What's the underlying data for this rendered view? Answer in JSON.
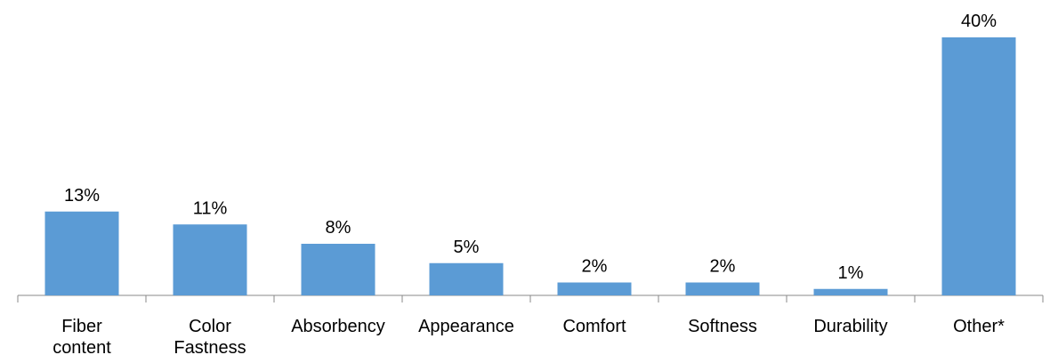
{
  "chart_data": {
    "type": "bar",
    "categories": [
      "Fiber content",
      "Color Fastness",
      "Absorbency",
      "Appearance",
      "Comfort",
      "Softness",
      "Durability",
      "Other*"
    ],
    "values": [
      13,
      11,
      8,
      5,
      2,
      2,
      1,
      40
    ],
    "value_labels": [
      "13%",
      "11%",
      "8%",
      "5%",
      "2%",
      "2%",
      "1%",
      "40%"
    ],
    "color": "#5b9bd5"
  }
}
